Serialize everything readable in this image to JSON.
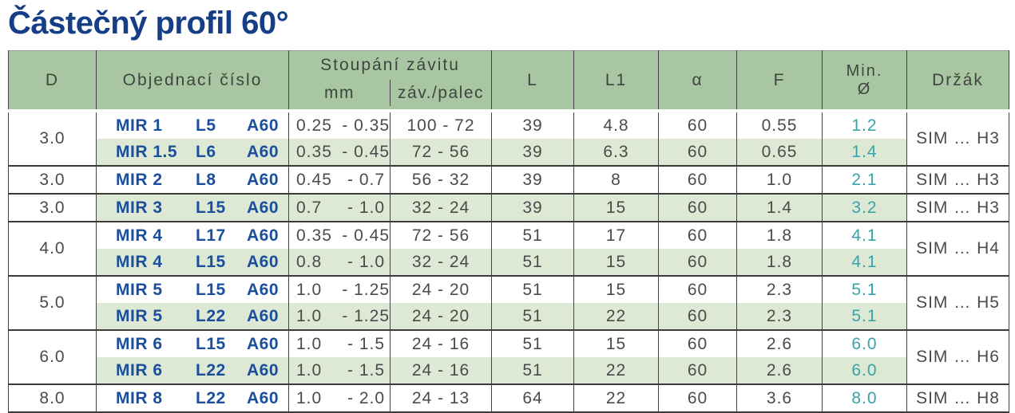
{
  "page": {
    "title": "Částečný profil 60°"
  },
  "colors": {
    "title_blue": "#153e86",
    "order_blue": "#1b4f9b",
    "header_green": "#a9c6a3",
    "row_green": "#dde8d5",
    "min_diameter_teal": "#39a3a9",
    "text_gray": "#4b4b4b"
  },
  "table": {
    "range_separator": "-",
    "headers": {
      "d": "D",
      "order": "Objednací číslo",
      "pitch_group": "Stoupání závitu",
      "pitch_mm": "mm",
      "pitch_tpi": "záv./palec",
      "l": "L",
      "l1": "L1",
      "alpha": "α",
      "f": "F",
      "min_line1": "Min.",
      "min_line2": "Ø",
      "holder": "Držák"
    },
    "groups": [
      {
        "d": "3.0",
        "holder": "SIM … H3",
        "rows": [
          {
            "order": [
              "MIR 1",
              "L5",
              "A60"
            ],
            "mm_min": "0.25",
            "mm_max": "0.35",
            "tpi": "100 - 72",
            "l": "39",
            "l1": "4.8",
            "alpha": "60",
            "f": "0.55",
            "min_d": "1.2",
            "shaded": false
          },
          {
            "order": [
              "MIR 1.5",
              "L6",
              "A60"
            ],
            "mm_min": "0.35",
            "mm_max": "0.45",
            "tpi": "72 - 56",
            "l": "39",
            "l1": "6.3",
            "alpha": "60",
            "f": "0.65",
            "min_d": "1.4",
            "shaded": true
          }
        ]
      },
      {
        "d": "3.0",
        "holder": "SIM … H3",
        "rows": [
          {
            "order": [
              "MIR 2",
              "L8",
              "A60"
            ],
            "mm_min": "0.45",
            "mm_max": "0.7",
            "tpi": "56 - 32",
            "l": "39",
            "l1": "8",
            "alpha": "60",
            "f": "1.0",
            "min_d": "2.1",
            "shaded": false
          }
        ]
      },
      {
        "d": "3.0",
        "holder": "SIM … H3",
        "rows": [
          {
            "order": [
              "MIR 3",
              "L15",
              "A60"
            ],
            "mm_min": "0.7",
            "mm_max": "1.0",
            "tpi": "32 - 24",
            "l": "39",
            "l1": "15",
            "alpha": "60",
            "f": "1.4",
            "min_d": "3.2",
            "shaded": true
          }
        ]
      },
      {
        "d": "4.0",
        "holder": "SIM … H4",
        "rows": [
          {
            "order": [
              "MIR 4",
              "L17",
              "A60"
            ],
            "mm_min": "0.35",
            "mm_max": "0.45",
            "tpi": "72 - 56",
            "l": "51",
            "l1": "17",
            "alpha": "60",
            "f": "1.8",
            "min_d": "4.1",
            "shaded": false
          },
          {
            "order": [
              "MIR 4",
              "L15",
              "A60"
            ],
            "mm_min": "0.8",
            "mm_max": "1.0",
            "tpi": "32 - 24",
            "l": "51",
            "l1": "15",
            "alpha": "60",
            "f": "1.8",
            "min_d": "4.1",
            "shaded": true
          }
        ]
      },
      {
        "d": "5.0",
        "holder": "SIM … H5",
        "rows": [
          {
            "order": [
              "MIR 5",
              "L15",
              "A60"
            ],
            "mm_min": "1.0",
            "mm_max": "1.25",
            "tpi": "24 - 20",
            "l": "51",
            "l1": "15",
            "alpha": "60",
            "f": "2.3",
            "min_d": "5.1",
            "shaded": false
          },
          {
            "order": [
              "MIR 5",
              "L22",
              "A60"
            ],
            "mm_min": "1.0",
            "mm_max": "1.25",
            "tpi": "24 - 20",
            "l": "51",
            "l1": "22",
            "alpha": "60",
            "f": "2.3",
            "min_d": "5.1",
            "shaded": true
          }
        ]
      },
      {
        "d": "6.0",
        "holder": "SIM … H6",
        "rows": [
          {
            "order": [
              "MIR 6",
              "L15",
              "A60"
            ],
            "mm_min": "1.0",
            "mm_max": "1.5",
            "tpi": "24 - 16",
            "l": "51",
            "l1": "15",
            "alpha": "60",
            "f": "2.6",
            "min_d": "6.0",
            "shaded": false
          },
          {
            "order": [
              "MIR 6",
              "L22",
              "A60"
            ],
            "mm_min": "1.0",
            "mm_max": "1.5",
            "tpi": "24 - 16",
            "l": "51",
            "l1": "22",
            "alpha": "60",
            "f": "2.6",
            "min_d": "6.0",
            "shaded": true
          }
        ]
      },
      {
        "d": "8.0",
        "holder": "SIM … H8",
        "rows": [
          {
            "order": [
              "MIR 8",
              "L22",
              "A60"
            ],
            "mm_min": "1.0",
            "mm_max": "2.0",
            "tpi": "24 - 13",
            "l": "64",
            "l1": "22",
            "alpha": "60",
            "f": "3.6",
            "min_d": "8.0",
            "shaded": false
          }
        ]
      }
    ]
  }
}
